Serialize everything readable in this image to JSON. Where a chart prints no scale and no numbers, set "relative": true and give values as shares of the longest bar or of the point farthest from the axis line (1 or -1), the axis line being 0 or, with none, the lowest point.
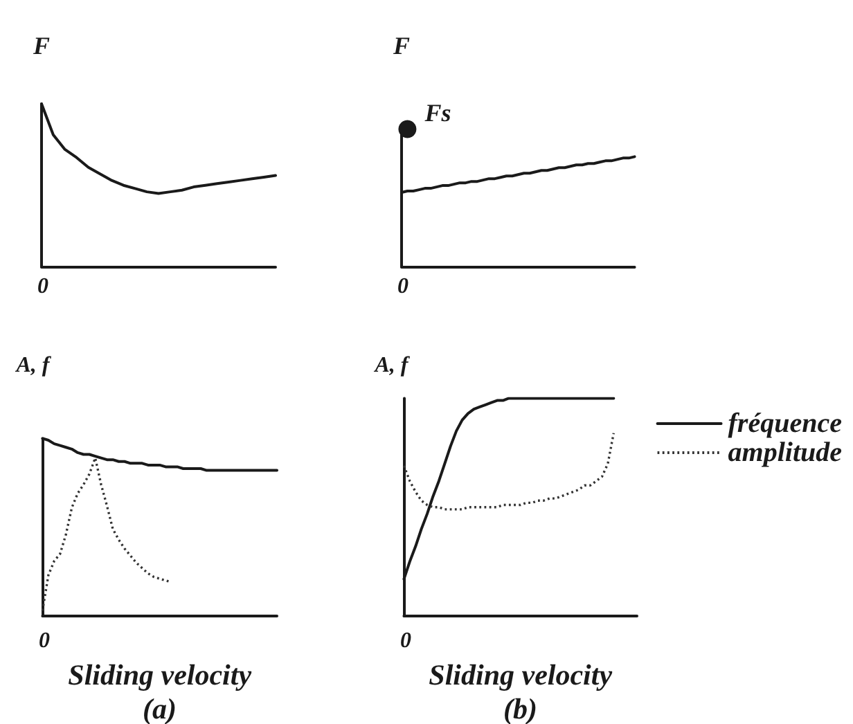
{
  "chart_data": [
    {
      "type": "line",
      "ylabel": "F",
      "annotations": [
        "0"
      ],
      "relative": true,
      "marker": "none",
      "categories": [
        null,
        null,
        null,
        null,
        null,
        null,
        null,
        null,
        null,
        null,
        null,
        null,
        null,
        null,
        null,
        null,
        null,
        null,
        null,
        null,
        null
      ],
      "series": [
        {
          "color": "#1a1a1a",
          "line_style": "solid",
          "values": [
            1,
            0.81,
            0.72,
            0.67,
            0.61,
            0.57,
            0.53,
            0.5,
            0.48,
            0.46,
            0.45,
            0.46,
            0.47,
            0.49,
            0.5,
            0.51,
            0.52,
            0.53,
            0.54,
            0.55,
            0.56
          ]
        }
      ]
    },
    {
      "type": "line",
      "ylabel": "F",
      "annotations": [
        "0"
      ],
      "relative": true,
      "marker": "none",
      "categories": [
        null,
        null,
        null,
        null,
        null,
        null,
        null,
        null,
        null,
        null,
        null,
        null,
        null,
        null,
        null,
        null,
        null,
        null,
        null,
        null,
        null,
        null,
        null,
        null,
        null,
        null,
        null,
        null,
        null,
        null,
        null,
        null,
        null,
        null,
        null,
        null,
        null,
        null,
        null,
        null,
        null
      ],
      "series": [
        {
          "color": "#1a1a1a",
          "line_style": "solid",
          "values": [
            0.54,
            0.55,
            0.55,
            0.56,
            0.57,
            0.57,
            0.58,
            0.59,
            0.59,
            0.6,
            0.61,
            0.61,
            0.62,
            0.62,
            0.63,
            0.64,
            0.64,
            0.65,
            0.66,
            0.66,
            0.67,
            0.68,
            0.68,
            0.69,
            0.7,
            0.7,
            0.71,
            0.72,
            0.72,
            0.73,
            0.74,
            0.74,
            0.75,
            0.75,
            0.76,
            0.77,
            0.77,
            0.78,
            0.79,
            0.79,
            0.8
          ]
        },
        {
          "name": "Fs",
          "marker": "circle",
          "color": "#1a1a1a",
          "values": [
            null,
            1,
            null,
            null,
            null,
            null,
            null,
            null,
            null,
            null,
            null,
            null,
            null,
            null,
            null,
            null,
            null,
            null,
            null,
            null,
            null,
            null,
            null,
            null,
            null,
            null,
            null,
            null,
            null,
            null,
            null,
            null,
            null,
            null,
            null,
            null,
            null,
            null,
            null,
            null,
            null
          ]
        }
      ]
    },
    {
      "type": "line",
      "ylabel": "A, f",
      "xlabel": "Sliding velocity",
      "annotations": [
        "0",
        "(a)"
      ],
      "relative": true,
      "marker": "none",
      "categories": [
        null,
        null,
        null,
        null,
        null,
        null,
        null,
        null,
        null,
        null,
        null,
        null,
        null,
        null,
        null,
        null,
        null,
        null,
        null,
        null,
        null,
        null,
        null,
        null,
        null,
        null,
        null,
        null,
        null,
        null,
        null,
        null,
        null,
        null,
        null,
        null,
        null,
        null,
        null,
        null,
        null
      ],
      "series": [
        {
          "color": "#1a1a1a",
          "line_style": "solid",
          "values": [
            1,
            0.99,
            0.97,
            0.96,
            0.95,
            0.94,
            0.92,
            0.91,
            0.91,
            0.9,
            0.89,
            0.88,
            0.88,
            0.87,
            0.87,
            0.86,
            0.86,
            0.86,
            0.85,
            0.85,
            0.85,
            0.84,
            0.84,
            0.84,
            0.83,
            0.83,
            0.83,
            0.83,
            0.82,
            0.82,
            0.82,
            0.82,
            0.82,
            0.82,
            0.82,
            0.82,
            0.82,
            0.82,
            0.82,
            0.82,
            0.82
          ]
        },
        {
          "color": "#333333",
          "line_style": "dotted",
          "values": [
            0.03,
            0.23,
            0.31,
            0.35,
            0.46,
            0.61,
            0.69,
            0.74,
            0.8,
            0.89,
            0.74,
            0.62,
            0.49,
            0.43,
            0.38,
            0.34,
            0.3,
            0.27,
            0.24,
            0.22,
            0.21,
            0.2,
            0.19,
            null,
            null,
            null,
            null,
            null,
            null,
            null,
            null,
            null,
            null,
            null,
            null,
            null,
            null,
            null,
            null,
            null,
            null
          ]
        }
      ]
    },
    {
      "type": "line",
      "ylabel": "A, f",
      "xlabel": "Sliding velocity",
      "annotations": [
        "0",
        "(b)"
      ],
      "relative": true,
      "marker": "none",
      "legend": "right",
      "categories": [
        null,
        null,
        null,
        null,
        null,
        null,
        null,
        null,
        null,
        null,
        null,
        null,
        null,
        null,
        null,
        null,
        null,
        null,
        null,
        null,
        null,
        null,
        null,
        null,
        null,
        null,
        null,
        null,
        null,
        null,
        null,
        null,
        null,
        null,
        null,
        null,
        null,
        null,
        null,
        null,
        null
      ],
      "series": [
        {
          "name": "fréquence",
          "color": "#1a1a1a",
          "line_style": "solid",
          "values": [
            0.17,
            0.25,
            0.32,
            0.4,
            0.47,
            0.55,
            0.62,
            0.7,
            0.78,
            0.85,
            0.9,
            0.93,
            0.95,
            0.96,
            0.97,
            0.98,
            0.99,
            0.99,
            1,
            1,
            1,
            1,
            1,
            1,
            1,
            1,
            1,
            1,
            1,
            1,
            1,
            1,
            1,
            1,
            1,
            1,
            1,
            null,
            null,
            null,
            null
          ]
        },
        {
          "name": "amplitude",
          "color": "#333333",
          "line_style": "dotted",
          "values": [
            0.69,
            0.62,
            0.57,
            0.53,
            0.51,
            0.5,
            0.5,
            0.49,
            0.49,
            0.49,
            0.49,
            0.5,
            0.5,
            0.5,
            0.5,
            0.5,
            0.5,
            0.51,
            0.51,
            0.51,
            0.51,
            0.52,
            0.52,
            0.53,
            0.53,
            0.54,
            0.54,
            0.55,
            0.56,
            0.57,
            0.58,
            0.6,
            0.6,
            0.62,
            0.64,
            0.7,
            0.84,
            null,
            null,
            null,
            null
          ]
        }
      ]
    }
  ]
}
